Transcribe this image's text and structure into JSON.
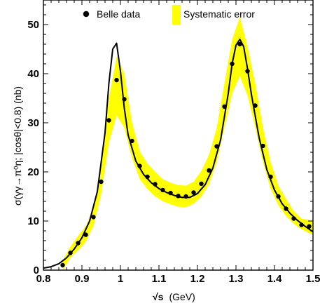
{
  "chart_data": {
    "type": "scatter",
    "xlabel_prefix": "√s",
    "xlabel_unit": "(GeV)",
    "ylabel": "σ(γγ→π⁰η; |cosθ|<0.8)  (nb)",
    "xlim": [
      0.8,
      1.5
    ],
    "ylim": [
      0,
      55
    ],
    "xticks": [
      0.8,
      0.9,
      1.0,
      1.1,
      1.2,
      1.3,
      1.4,
      1.5
    ],
    "xtick_labels": [
      "0.8",
      "0.9",
      "1",
      "1.1",
      "1.2",
      "1.3",
      "1.4",
      "1.5"
    ],
    "yticks": [
      0,
      10,
      20,
      30,
      40,
      50
    ],
    "ytick_labels": [
      "0",
      "10",
      "20",
      "30",
      "40",
      "50"
    ],
    "legend": {
      "placement": "top",
      "entries": [
        {
          "label": "Belle  data",
          "marker": "dot"
        },
        {
          "label": "Systematic error",
          "marker": "band"
        }
      ]
    },
    "colors": {
      "band": "#ffff00",
      "curve": "#000000",
      "points": "#000000"
    },
    "series": [
      {
        "name": "Belle  data",
        "kind": "points",
        "x": [
          0.85,
          0.87,
          0.89,
          0.91,
          0.93,
          0.95,
          0.97,
          0.99,
          1.01,
          1.03,
          1.05,
          1.07,
          1.09,
          1.11,
          1.13,
          1.15,
          1.17,
          1.19,
          1.21,
          1.23,
          1.25,
          1.27,
          1.29,
          1.31,
          1.33,
          1.35,
          1.37,
          1.39,
          1.41,
          1.43,
          1.45,
          1.47,
          1.49
        ],
        "y": [
          1.0,
          3.5,
          5.5,
          7.2,
          10.8,
          18.0,
          30.5,
          38.7,
          34.8,
          26.3,
          21.2,
          19.0,
          17.5,
          16.3,
          15.7,
          15.1,
          15.0,
          15.8,
          17.6,
          20.3,
          25.2,
          33.3,
          42.0,
          46.0,
          40.5,
          33.5,
          25.3,
          19.0,
          15.0,
          12.5,
          10.5,
          9.2,
          8.9
        ]
      },
      {
        "name": "",
        "kind": "curve",
        "x": [
          0.8,
          0.82,
          0.84,
          0.86,
          0.88,
          0.9,
          0.92,
          0.94,
          0.96,
          0.97,
          0.98,
          0.99,
          1.0,
          1.01,
          1.02,
          1.04,
          1.06,
          1.08,
          1.1,
          1.12,
          1.14,
          1.16,
          1.18,
          1.2,
          1.22,
          1.24,
          1.26,
          1.28,
          1.29,
          1.3,
          1.31,
          1.32,
          1.33,
          1.34,
          1.36,
          1.38,
          1.4,
          1.42,
          1.44,
          1.46,
          1.48,
          1.5
        ],
        "y": [
          0.4,
          0.7,
          1.3,
          2.5,
          4.3,
          6.6,
          10.0,
          16.0,
          28.0,
          38.0,
          45.0,
          46.2,
          40.5,
          33.0,
          27.5,
          22.2,
          19.5,
          17.8,
          16.6,
          15.8,
          15.2,
          14.8,
          14.8,
          15.6,
          17.4,
          20.8,
          26.5,
          36.0,
          42.0,
          45.8,
          47.0,
          45.5,
          41.0,
          35.8,
          27.0,
          20.5,
          16.3,
          13.5,
          11.6,
          10.1,
          8.9,
          7.8
        ]
      },
      {
        "name": "Systematic error",
        "kind": "band",
        "x": [
          0.85,
          0.87,
          0.89,
          0.91,
          0.93,
          0.95,
          0.97,
          0.99,
          1.01,
          1.03,
          1.05,
          1.07,
          1.09,
          1.11,
          1.13,
          1.15,
          1.17,
          1.19,
          1.21,
          1.23,
          1.25,
          1.27,
          1.29,
          1.31,
          1.33,
          1.35,
          1.37,
          1.39,
          1.41,
          1.43,
          1.45,
          1.47,
          1.49,
          1.5
        ],
        "lower": [
          0.0,
          2.5,
          4.0,
          5.8,
          9.0,
          15.5,
          26.0,
          31.5,
          29.0,
          22.8,
          18.5,
          16.5,
          15.0,
          14.0,
          13.4,
          12.9,
          12.8,
          13.5,
          15.0,
          17.5,
          22.0,
          29.0,
          36.0,
          39.5,
          35.5,
          29.0,
          22.0,
          16.5,
          13.2,
          11.0,
          9.4,
          8.3,
          7.5,
          7.3
        ],
        "upper": [
          2.0,
          4.8,
          7.0,
          9.0,
          12.5,
          20.8,
          35.0,
          43.5,
          40.0,
          30.0,
          24.2,
          21.7,
          20.0,
          18.5,
          17.8,
          17.3,
          17.2,
          18.0,
          20.2,
          23.5,
          29.0,
          38.0,
          47.0,
          51.5,
          45.5,
          38.0,
          29.0,
          22.0,
          17.2,
          14.5,
          12.0,
          10.5,
          10.2,
          10.0
        ]
      }
    ]
  }
}
